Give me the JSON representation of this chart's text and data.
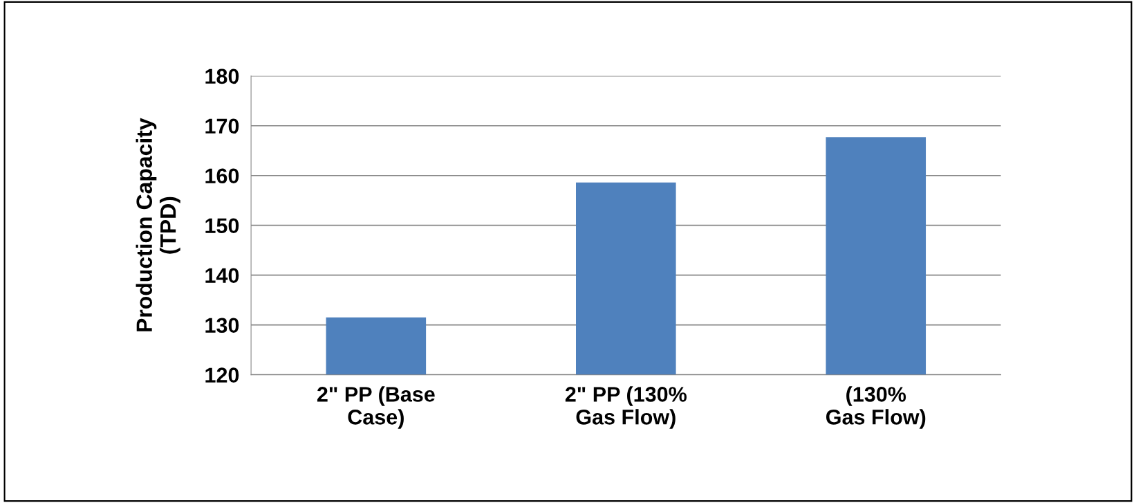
{
  "chart_data": {
    "type": "bar",
    "ylabel": "Production Capacity\n(TPD)",
    "categories": [
      "2\" PP (Base\nCase)",
      "2\" PP (130%\nGas Flow)",
      "(130%\nGas Flow)"
    ],
    "values": [
      131.5,
      158.6,
      167.7
    ],
    "color": "#4f81bd",
    "ylim": [
      120,
      180
    ],
    "yticks": [
      120,
      130,
      140,
      150,
      160,
      170,
      180
    ],
    "grid": "y",
    "legend": false
  }
}
